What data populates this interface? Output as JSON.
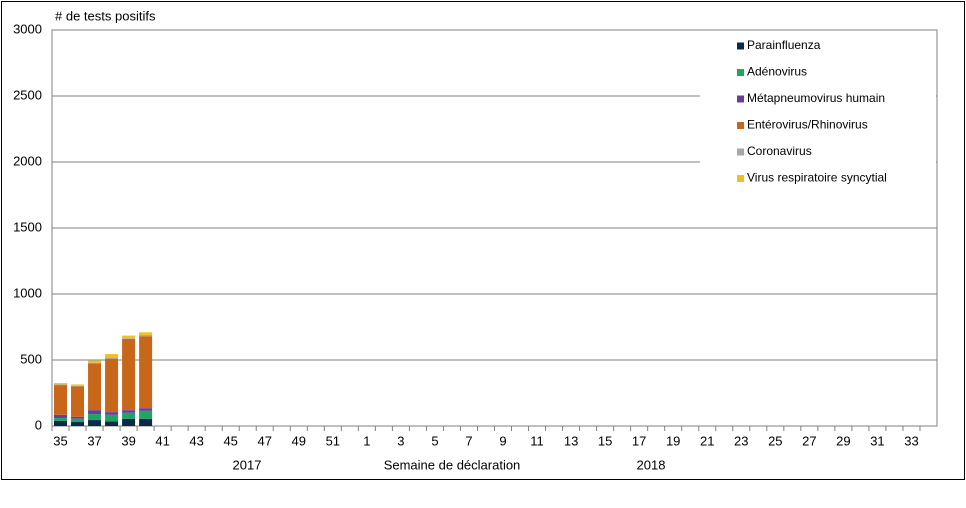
{
  "chart_data": {
    "type": "stacked_bar",
    "title": "# de tests positifs",
    "x_label": "Semaine de déclaration",
    "year_labels": [
      "2017",
      "2018"
    ],
    "categories": [
      "35",
      null,
      "37",
      null,
      "39",
      null,
      "41",
      null,
      "43",
      null,
      "45",
      null,
      "47",
      null,
      "49",
      null,
      "51",
      null,
      "1",
      null,
      "3",
      null,
      "5",
      null,
      "7",
      null,
      "9",
      null,
      "11",
      null,
      "13",
      null,
      "15",
      null,
      "17",
      null,
      "19",
      null,
      "21",
      null,
      "23",
      null,
      "25",
      null,
      "27",
      null,
      "29",
      null,
      "31",
      null,
      "33",
      null
    ],
    "series": [
      {
        "name": "Parainfluenza",
        "color": "#0b2a4a",
        "values": [
          40,
          30,
          45,
          35,
          55,
          55,
          null,
          null,
          null,
          null,
          null,
          null,
          null,
          null,
          null,
          null,
          null,
          null,
          null,
          null,
          null,
          null,
          null,
          null,
          null,
          null,
          null,
          null,
          null,
          null,
          null,
          null,
          null,
          null,
          null,
          null,
          null,
          null,
          null,
          null,
          null,
          null,
          null,
          null,
          null,
          null,
          null,
          null,
          null,
          null,
          null,
          null
        ]
      },
      {
        "name": "Adénovirus",
        "color": "#1aa860",
        "values": [
          20,
          25,
          45,
          50,
          45,
          60,
          null,
          null,
          null,
          null,
          null,
          null,
          null,
          null,
          null,
          null,
          null,
          null,
          null,
          null,
          null,
          null,
          null,
          null,
          null,
          null,
          null,
          null,
          null,
          null,
          null,
          null,
          null,
          null,
          null,
          null,
          null,
          null,
          null,
          null,
          null,
          null,
          null,
          null,
          null,
          null,
          null,
          null,
          null,
          null,
          null,
          null
        ]
      },
      {
        "name": "Métapneumovirus humain",
        "color": "#6a3d9a",
        "values": [
          25,
          15,
          30,
          20,
          20,
          20,
          null,
          null,
          null,
          null,
          null,
          null,
          null,
          null,
          null,
          null,
          null,
          null,
          null,
          null,
          null,
          null,
          null,
          null,
          null,
          null,
          null,
          null,
          null,
          null,
          null,
          null,
          null,
          null,
          null,
          null,
          null,
          null,
          null,
          null,
          null,
          null,
          null,
          null,
          null,
          null,
          null,
          null,
          null,
          null,
          null,
          null
        ]
      },
      {
        "name": "Entérovirus/Rhinovirus",
        "color": "#c8661a",
        "values": [
          225,
          230,
          355,
          405,
          540,
          545,
          null,
          null,
          null,
          null,
          null,
          null,
          null,
          null,
          null,
          null,
          null,
          null,
          null,
          null,
          null,
          null,
          null,
          null,
          null,
          null,
          null,
          null,
          null,
          null,
          null,
          null,
          null,
          null,
          null,
          null,
          null,
          null,
          null,
          null,
          null,
          null,
          null,
          null,
          null,
          null,
          null,
          null,
          null,
          null,
          null,
          null
        ]
      },
      {
        "name": "Coronavirus",
        "color": "#a6a6a6",
        "values": [
          5,
          5,
          5,
          10,
          5,
          10,
          null,
          null,
          null,
          null,
          null,
          null,
          null,
          null,
          null,
          null,
          null,
          null,
          null,
          null,
          null,
          null,
          null,
          null,
          null,
          null,
          null,
          null,
          null,
          null,
          null,
          null,
          null,
          null,
          null,
          null,
          null,
          null,
          null,
          null,
          null,
          null,
          null,
          null,
          null,
          null,
          null,
          null,
          null,
          null,
          null,
          null
        ]
      },
      {
        "name": "Virus respiratoire syncytial",
        "color": "#f2c01e",
        "values": [
          10,
          10,
          15,
          25,
          20,
          20,
          null,
          null,
          null,
          null,
          null,
          null,
          null,
          null,
          null,
          null,
          null,
          null,
          null,
          null,
          null,
          null,
          null,
          null,
          null,
          null,
          null,
          null,
          null,
          null,
          null,
          null,
          null,
          null,
          null,
          null,
          null,
          null,
          null,
          null,
          null,
          null,
          null,
          null,
          null,
          null,
          null,
          null,
          null,
          null,
          null,
          null
        ]
      }
    ],
    "ylim": [
      0,
      3000
    ],
    "yticks": [
      0,
      500,
      1000,
      1500,
      2000,
      2500,
      3000
    ],
    "grid": true,
    "legend": "top-right"
  }
}
